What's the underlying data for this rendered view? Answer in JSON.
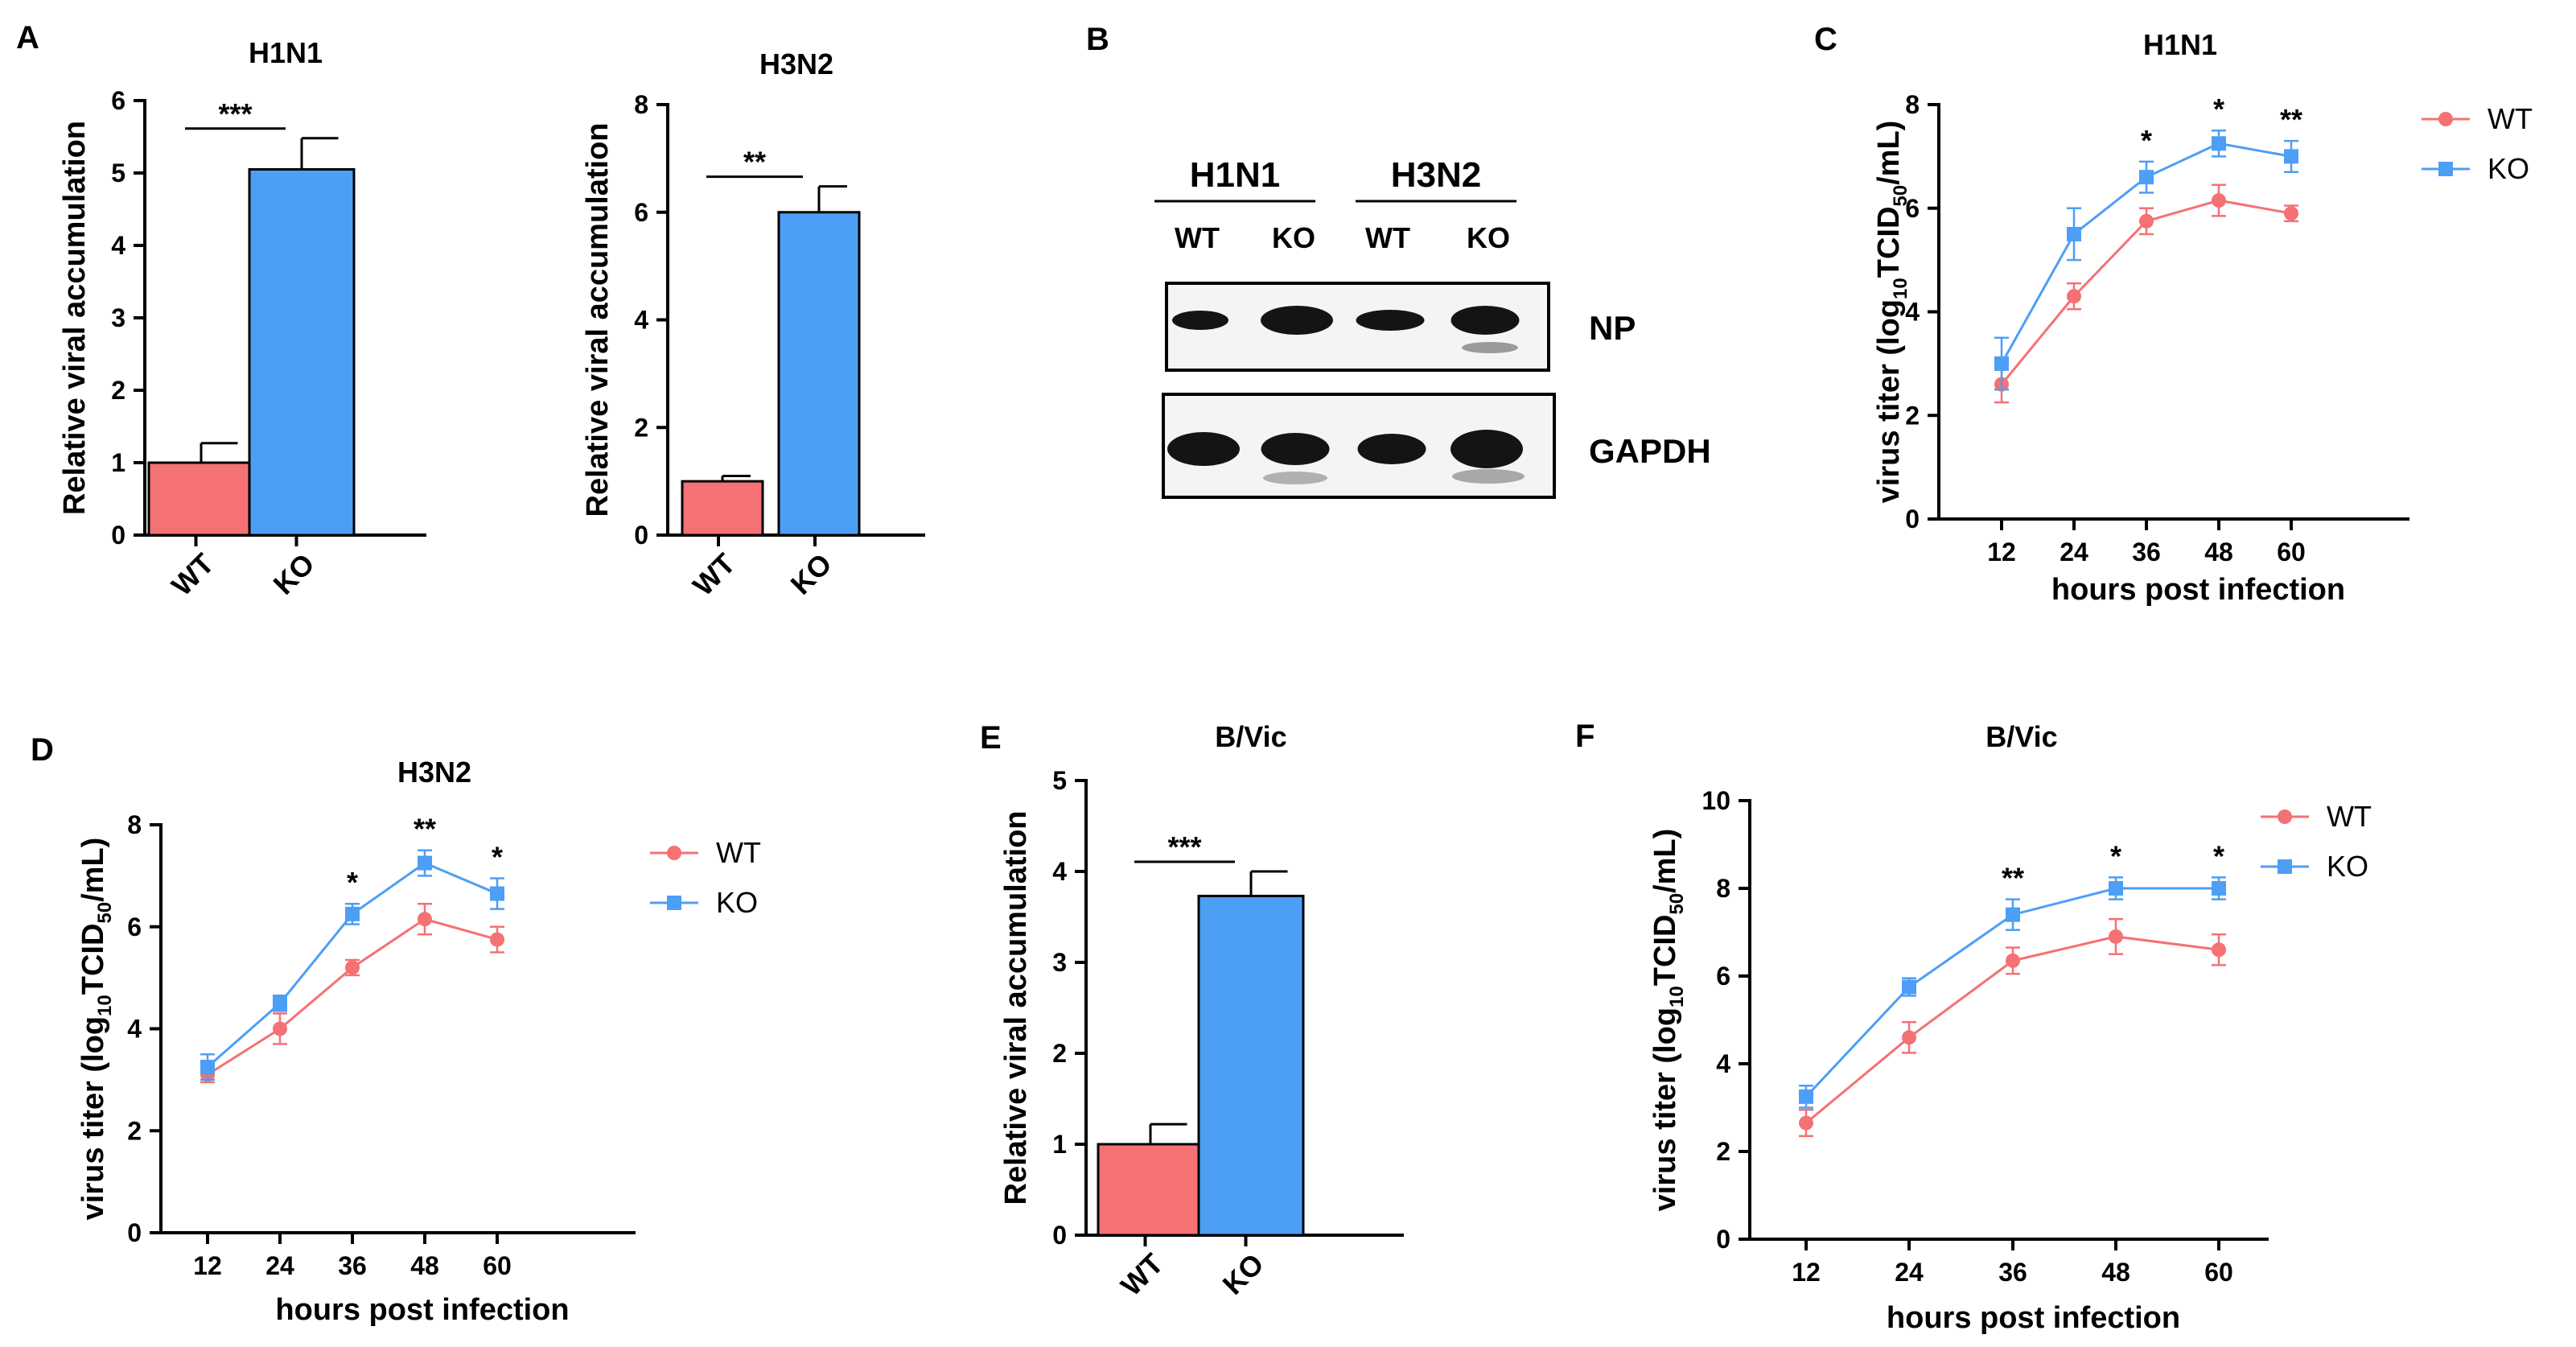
{
  "figure": {
    "panel_labels": [
      "A",
      "B",
      "C",
      "D",
      "E",
      "F"
    ],
    "series_colors": {
      "WT": "#f47174",
      "KO": "#4d9ef5"
    },
    "subscript_ten": "10",
    "subscript_fifty": "50"
  },
  "blot": {
    "groups": [
      "H1N1",
      "H3N2"
    ],
    "lanes": [
      "WT",
      "KO",
      "WT",
      "KO"
    ],
    "rows": [
      "NP",
      "GAPDH"
    ]
  },
  "chart_data": [
    {
      "id": "A1",
      "type": "bar",
      "panel": "A",
      "title": "H1N1",
      "categories": [
        "WT",
        "KO"
      ],
      "values": [
        1.0,
        5.05
      ],
      "errors": [
        0.27,
        0.43
      ],
      "ylabel": "Relative viral accumulation",
      "ylim": [
        0,
        6
      ],
      "yticks": [
        0,
        1,
        2,
        3,
        4,
        5,
        6
      ],
      "significance": "***"
    },
    {
      "id": "A2",
      "type": "bar",
      "panel": "",
      "title": "H3N2",
      "categories": [
        "WT",
        "KO"
      ],
      "values": [
        1.0,
        6.0
      ],
      "errors": [
        0.1,
        0.48
      ],
      "ylabel": "Relative viral accumulation",
      "ylim": [
        0,
        8
      ],
      "yticks": [
        0,
        2,
        4,
        6,
        8
      ],
      "significance": "**"
    },
    {
      "id": "C",
      "type": "line",
      "panel": "C",
      "title": "H1N1",
      "x": [
        12,
        24,
        36,
        48,
        60
      ],
      "xlabel": "hours post infection",
      "ylabel_prefix": "virus titer (log",
      "ylabel_mid": "TCID",
      "ylabel_suffix": "/mL)",
      "ylim": [
        0,
        8
      ],
      "yticks": [
        0,
        2,
        4,
        6,
        8
      ],
      "series": [
        {
          "name": "WT",
          "values": [
            2.6,
            4.3,
            5.75,
            6.15,
            5.9
          ],
          "errors": [
            0.35,
            0.25,
            0.25,
            0.3,
            0.15
          ]
        },
        {
          "name": "KO",
          "values": [
            3.0,
            5.5,
            6.6,
            7.25,
            7.0
          ],
          "errors": [
            0.5,
            0.5,
            0.3,
            0.25,
            0.3
          ]
        }
      ],
      "significance": [
        "",
        "",
        "*",
        "*",
        "**"
      ]
    },
    {
      "id": "D",
      "type": "line",
      "panel": "D",
      "title": "H3N2",
      "x": [
        12,
        24,
        36,
        48,
        60
      ],
      "xlabel": "hours post infection",
      "ylabel_prefix": "virus titer (log",
      "ylabel_mid": "TCID",
      "ylabel_suffix": "/mL)",
      "ylim": [
        0,
        8
      ],
      "yticks": [
        0,
        2,
        4,
        6,
        8
      ],
      "series": [
        {
          "name": "WT",
          "values": [
            3.1,
            4.0,
            5.2,
            6.15,
            5.75
          ],
          "errors": [
            0.15,
            0.3,
            0.15,
            0.3,
            0.25
          ]
        },
        {
          "name": "KO",
          "values": [
            3.25,
            4.5,
            6.25,
            7.25,
            6.65
          ],
          "errors": [
            0.25,
            0.15,
            0.2,
            0.25,
            0.3
          ]
        }
      ],
      "significance": [
        "",
        "",
        "*",
        "**",
        "*"
      ]
    },
    {
      "id": "E",
      "type": "bar",
      "panel": "E",
      "title": "B/Vic",
      "categories": [
        "WT",
        "KO"
      ],
      "values": [
        1.0,
        3.73
      ],
      "errors": [
        0.22,
        0.27
      ],
      "ylabel": "Relative viral accumulation",
      "ylim": [
        0,
        5
      ],
      "yticks": [
        0,
        1,
        2,
        3,
        4,
        5
      ],
      "significance": "***"
    },
    {
      "id": "F",
      "type": "line",
      "panel": "F",
      "title": "B/Vic",
      "x": [
        12,
        24,
        36,
        48,
        60
      ],
      "xlabel": "hours post infection",
      "ylabel_prefix": "virus titer (log",
      "ylabel_mid": "TCID",
      "ylabel_suffix": "/mL)",
      "ylim": [
        0,
        10
      ],
      "yticks": [
        0,
        2,
        4,
        6,
        8,
        10
      ],
      "series": [
        {
          "name": "WT",
          "values": [
            2.65,
            4.6,
            6.35,
            6.9,
            6.6
          ],
          "errors": [
            0.3,
            0.35,
            0.3,
            0.4,
            0.35
          ]
        },
        {
          "name": "KO",
          "values": [
            3.25,
            5.75,
            7.4,
            8.0,
            8.0
          ],
          "errors": [
            0.25,
            0.2,
            0.35,
            0.25,
            0.25
          ]
        }
      ],
      "significance": [
        "",
        "",
        "**",
        "*",
        "*"
      ]
    }
  ]
}
